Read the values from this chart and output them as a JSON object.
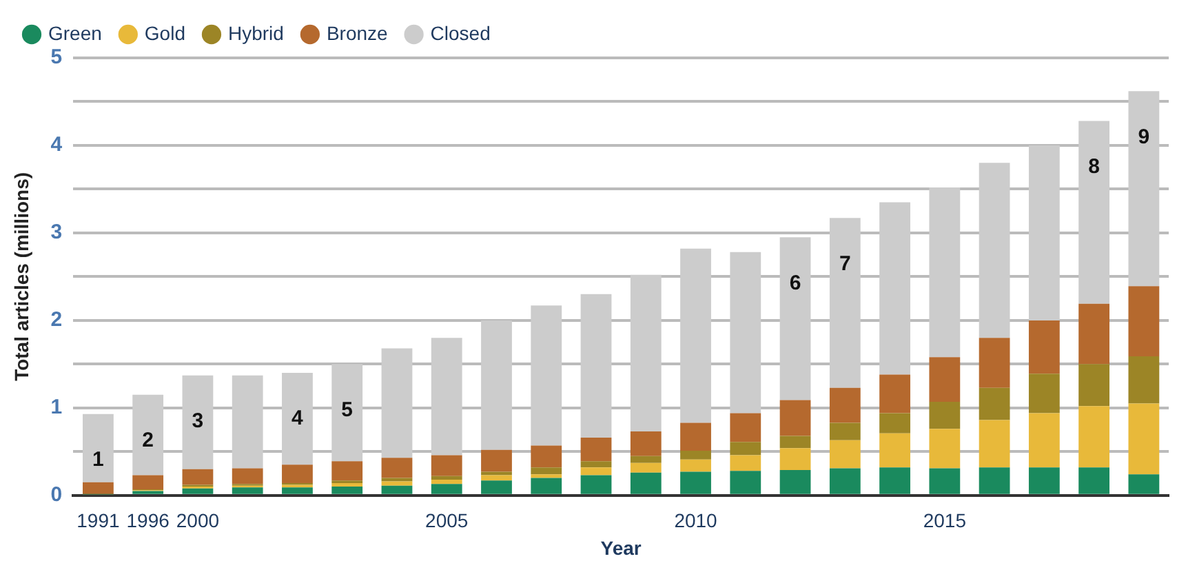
{
  "chart_data": {
    "type": "bar",
    "stacked": true,
    "xlabel": "Year",
    "ylabel": "Total articles (millions)",
    "categories": [
      "1991",
      "1996",
      "2000",
      null,
      null,
      null,
      null,
      "2005",
      null,
      null,
      null,
      null,
      "2010",
      null,
      null,
      null,
      null,
      "2015",
      null,
      null,
      null,
      null
    ],
    "series": [
      {
        "name": "Green",
        "color": "#1a8a5e",
        "values": [
          0.01,
          0.05,
          0.08,
          0.09,
          0.09,
          0.1,
          0.11,
          0.13,
          0.17,
          0.2,
          0.23,
          0.26,
          0.27,
          0.28,
          0.29,
          0.31,
          0.32,
          0.31,
          0.32,
          0.32,
          0.32,
          0.24
        ]
      },
      {
        "name": "Gold",
        "color": "#e8b93a",
        "values": [
          0,
          0.01,
          0.02,
          0.02,
          0.03,
          0.04,
          0.05,
          0.05,
          0.06,
          0.04,
          0.09,
          0.11,
          0.14,
          0.18,
          0.25,
          0.32,
          0.39,
          0.45,
          0.54,
          0.62,
          0.7,
          0.81
        ]
      },
      {
        "name": "Hybrid",
        "color": "#9c8526",
        "values": [
          0,
          0.01,
          0.02,
          0.02,
          0.02,
          0.03,
          0.04,
          0.04,
          0.04,
          0.08,
          0.07,
          0.08,
          0.1,
          0.15,
          0.14,
          0.2,
          0.23,
          0.31,
          0.37,
          0.45,
          0.48,
          0.54
        ]
      },
      {
        "name": "Bronze",
        "color": "#b5692e",
        "values": [
          0.14,
          0.16,
          0.18,
          0.18,
          0.21,
          0.22,
          0.23,
          0.24,
          0.25,
          0.25,
          0.27,
          0.28,
          0.32,
          0.33,
          0.41,
          0.4,
          0.44,
          0.51,
          0.57,
          0.61,
          0.69,
          0.8
        ]
      },
      {
        "name": "Closed",
        "color": "#cccccc",
        "values": [
          0.78,
          0.92,
          1.07,
          1.06,
          1.05,
          1.11,
          1.25,
          1.34,
          1.48,
          1.6,
          1.64,
          1.79,
          1.99,
          1.84,
          1.86,
          1.94,
          1.97,
          1.94,
          2.0,
          2.0,
          2.09,
          2.23
        ]
      }
    ],
    "annotations": [
      {
        "text": "1",
        "x": "1991",
        "y": 0.93
      },
      {
        "text": "2",
        "x": "1996",
        "y": 1.15
      },
      {
        "text": "3",
        "x": "2000",
        "y": 1.37
      },
      {
        "text": "4",
        "y": 1.4
      },
      {
        "text": "5",
        "y": 1.5
      },
      {
        "text": "6",
        "y": 2.95
      },
      {
        "text": "7",
        "y": 3.17
      },
      {
        "text": "8",
        "y": 4.28
      },
      {
        "text": "9",
        "y": 4.62
      }
    ],
    "ylim": [
      0,
      5
    ],
    "yticks": [
      0,
      {
        "value": 0.5,
        "label": null
      },
      1,
      {
        "value": 1.5,
        "label": null
      },
      2,
      {
        "value": 2.5,
        "label": null
      },
      3,
      {
        "value": 3.5,
        "label": null
      },
      4,
      {
        "value": 4.5,
        "label": null
      },
      5
    ],
    "grid": "y",
    "legend": "top left"
  }
}
